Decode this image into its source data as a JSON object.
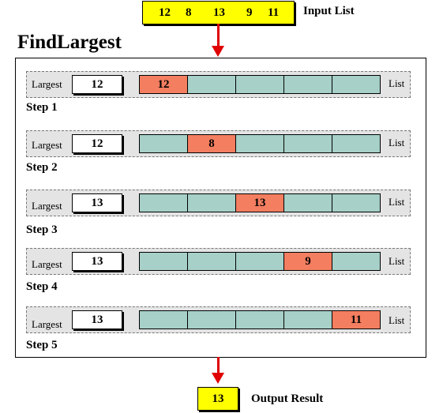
{
  "input": {
    "values": [
      "12",
      "8",
      "13",
      "9",
      "11"
    ],
    "label": "Input List"
  },
  "title": "FindLargest",
  "labels": {
    "largest": "Largest",
    "list": "List"
  },
  "steps": [
    {
      "name": "Step 1",
      "largest": "12",
      "active_index": 0,
      "active_value": "12"
    },
    {
      "name": "Step 2",
      "largest": "12",
      "active_index": 1,
      "active_value": "8"
    },
    {
      "name": "Step 3",
      "largest": "13",
      "active_index": 2,
      "active_value": "13"
    },
    {
      "name": "Step 4",
      "largest": "13",
      "active_index": 3,
      "active_value": "9"
    },
    {
      "name": "Step 5",
      "largest": "13",
      "active_index": 4,
      "active_value": "11"
    }
  ],
  "output": {
    "value": "13",
    "label": "Output Result"
  },
  "colors": {
    "highlight": "#f47e60",
    "cell": "#a6d0c8",
    "io_box": "#ffff00",
    "arrow": "#e00000"
  }
}
